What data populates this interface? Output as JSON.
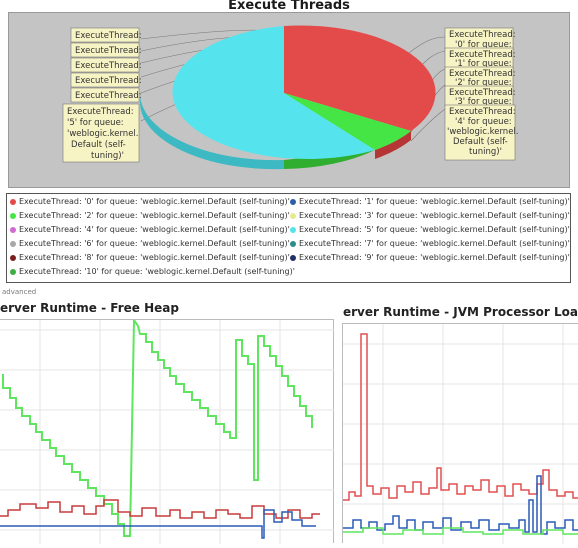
{
  "execute_threads": {
    "title": "Execute Threads",
    "colors": {
      "red": "#e34b4b",
      "cyan": "#55e4ee",
      "green": "#45e545"
    },
    "callouts_left": [
      "ExecuteThread:",
      "ExecuteThread:",
      "ExecuteThread:",
      "ExecuteThread:",
      "ExecuteThread:"
    ],
    "callout_big_left": [
      "ExecuteThread:",
      "'5' for queue:",
      "'weblogic.kernel.",
      "Default (self-",
      "tuning)'"
    ],
    "callouts_right_small": [
      [
        "ExecuteThread:",
        "'0' for queue:"
      ],
      [
        "ExecuteThread:",
        "'1' for queue:"
      ],
      [
        "ExecuteThread:",
        "'2' for queue:"
      ],
      [
        "ExecuteThread:",
        "'3' for queue:"
      ]
    ],
    "callout_big_right": [
      "ExecuteThread:",
      "'4' for queue:",
      "'weblogic.kernel.",
      "Default (self-",
      "tuning)'"
    ]
  },
  "legend": {
    "items": [
      {
        "label": "ExecuteThread: '0' for queue: 'weblogic.kernel.Default (self-tuning)'",
        "color": "#e34b4b"
      },
      {
        "label": "ExecuteThread: '1' for queue: 'weblogic.kernel.Default (self-tuning)'",
        "color": "#2b5fa8"
      },
      {
        "label": "ExecuteThread: '2' for queue: 'weblogic.kernel.Default (self-tuning)'",
        "color": "#45e545"
      },
      {
        "label": "ExecuteThread: '3' for queue: 'weblogic.kernel.Default (self-tuning)'",
        "color": "#e8e890"
      },
      {
        "label": "ExecuteThread: '4' for queue: 'weblogic.kernel.Default (self-tuning)'",
        "color": "#d06ad0"
      },
      {
        "label": "ExecuteThread: '5' for queue: 'weblogic.kernel.Default (self-tuning)'",
        "color": "#55e4ee"
      },
      {
        "label": "ExecuteThread: '6' for queue: 'weblogic.kernel.Default (self-tuning)'",
        "color": "#a8a8a8"
      },
      {
        "label": "ExecuteThread: '7' for queue: 'weblogic.kernel.Default (self-tuning)'",
        "color": "#2d8c8c"
      },
      {
        "label": "ExecuteThread: '8' for queue: 'weblogic.kernel.Default (self-tuning)'",
        "color": "#7a1f1f"
      },
      {
        "label": "ExecuteThread: '9' for queue: 'weblogic.kernel.Default (self-tuning)'",
        "color": "#1f2f6a"
      },
      {
        "label": "ExecuteThread: '10' for queue: 'weblogic.kernel.Default (self-tuning)'",
        "color": "#3fae3f"
      }
    ]
  },
  "advanced_label": "advanced",
  "heap_chart": {
    "title": "erver Runtime - Free Heap",
    "colors": {
      "green": "#5ee65e",
      "red": "#c83a3a",
      "blue": "#2a5cb8",
      "grid": "#e4e4e4"
    }
  },
  "cpu_chart": {
    "title": "erver Runtime - JVM Processor Load",
    "colors": {
      "red": "#e05050",
      "blue": "#2a5cb8",
      "green": "#5ee65e",
      "grid": "#e4e4e4"
    }
  },
  "chart_data": [
    {
      "type": "pie",
      "title": "Execute Threads",
      "categories": [
        "ExecuteThread: '0'",
        "ExecuteThread: '2'",
        "ExecuteThread: '5'"
      ],
      "values": [
        25,
        5,
        70
      ]
    }
  ]
}
